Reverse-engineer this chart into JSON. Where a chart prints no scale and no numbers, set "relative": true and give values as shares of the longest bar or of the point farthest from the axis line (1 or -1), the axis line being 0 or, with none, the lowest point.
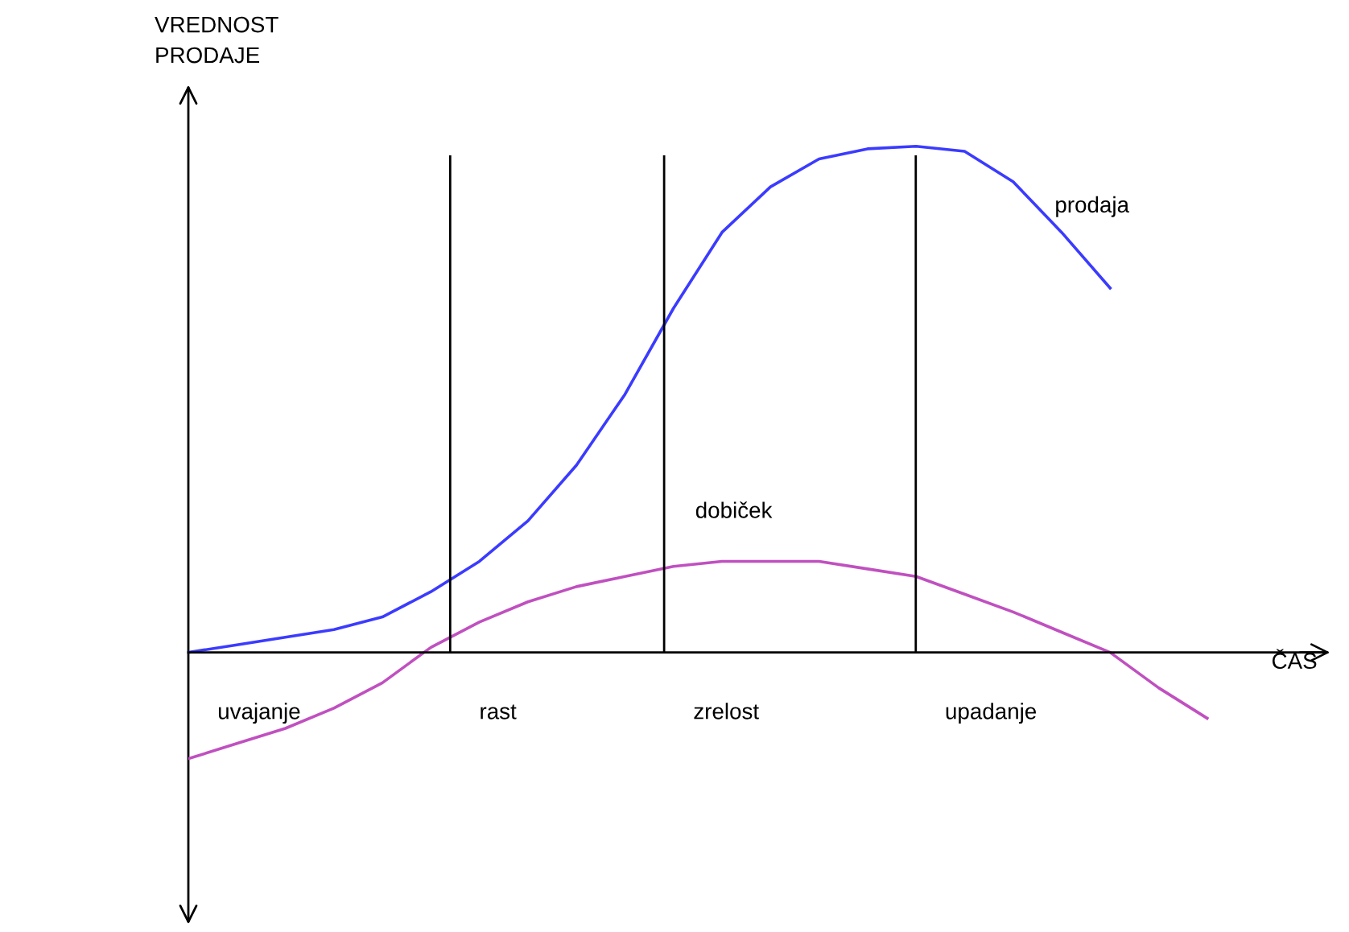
{
  "chart_data": {
    "type": "line",
    "relative": true,
    "ylabel": "VREDNOST\nPRODAJE",
    "xlabel": "ČAS",
    "categories": [
      null,
      null,
      null,
      null,
      null,
      null,
      null,
      null,
      null,
      null,
      null,
      null,
      null,
      null,
      null,
      null,
      null,
      null,
      null,
      null,
      null,
      null
    ],
    "series": [
      {
        "name": "prodaja",
        "color": "#3b3bff",
        "values": [
          0,
          0.015,
          0.03,
          0.045,
          0.07,
          0.12,
          0.18,
          0.26,
          0.37,
          0.51,
          0.68,
          0.83,
          0.92,
          0.975,
          0.995,
          1.0,
          0.99,
          0.93,
          0.83,
          0.72,
          null,
          null
        ]
      },
      {
        "name": "dobiček",
        "color": "#c050c0",
        "values": [
          -0.21,
          -0.18,
          -0.15,
          -0.11,
          -0.06,
          0.01,
          0.06,
          0.1,
          0.13,
          0.15,
          0.17,
          0.18,
          0.18,
          0.18,
          0.165,
          0.15,
          0.115,
          0.08,
          0.04,
          0.0,
          -0.07,
          -0.13
        ]
      }
    ],
    "annotations": [
      "uvajanje",
      "rast",
      "zrelost",
      "upadanje"
    ],
    "legend": false,
    "marker": "none",
    "line_style": "solid"
  }
}
